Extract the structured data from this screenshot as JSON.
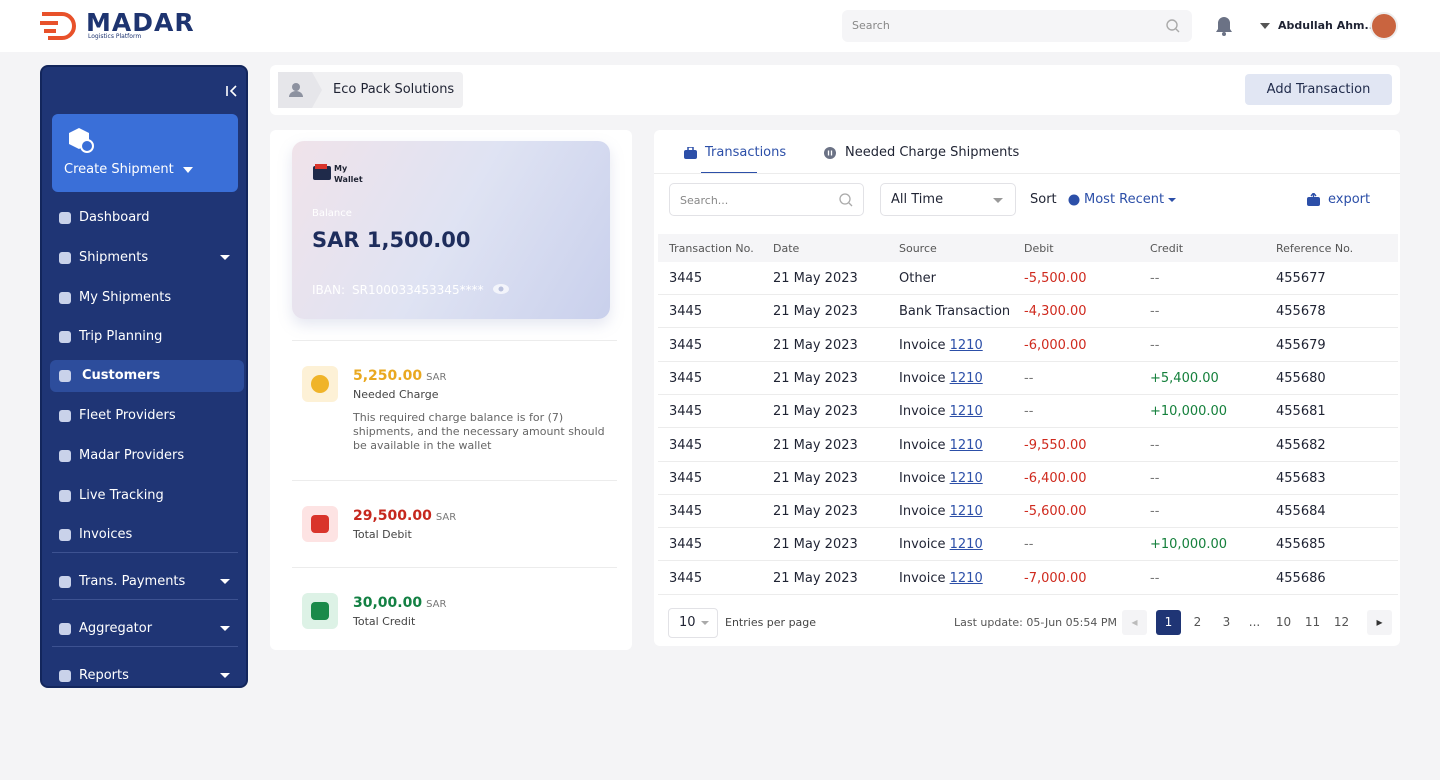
{
  "header": {
    "logo_title": "MADAR",
    "logo_subtitle": "Logistics Platform",
    "search_placeholder": "Search",
    "user_name": "Abdullah Ahm..."
  },
  "sidebar": {
    "create_shipment": "Create Shipment",
    "items": [
      {
        "label": "Dashboard"
      },
      {
        "label": "Shipments",
        "has_submenu": true
      },
      {
        "label": "My Shipments"
      },
      {
        "label": "Trip Planning"
      },
      {
        "label": "Customers",
        "active": true
      },
      {
        "label": "Fleet Providers"
      },
      {
        "label": "Madar Providers"
      },
      {
        "label": "Live Tracking"
      },
      {
        "label": "Invoices"
      },
      {
        "label": "Trans. Payments",
        "has_submenu": true,
        "divider_before": true
      },
      {
        "label": "Aggregator",
        "has_submenu": true,
        "divider_before": true
      },
      {
        "label": "Reports",
        "has_submenu": true,
        "divider_before": true
      }
    ]
  },
  "breadcrumb": "Eco Pack Solutions",
  "add_button": "Add Transaction",
  "wallet": {
    "title": "My Wallet",
    "balance_label": "Balance",
    "balance": "SAR 1,500.00",
    "iban_label": "IBAN:",
    "iban": "SR100033453345****"
  },
  "summary": [
    {
      "amount": "5,250.00",
      "currency": "SAR",
      "label": "Needed Charge",
      "note": "This required charge balance is for (7) shipments, and the necessary amount should be available in the wallet"
    },
    {
      "amount": "29,500.00",
      "currency": "SAR",
      "label": "Total Debit"
    },
    {
      "amount": "30,00.00",
      "currency": "SAR",
      "label": "Total Credit"
    }
  ],
  "tabs": [
    "Transactions",
    "Needed Charge Shipments"
  ],
  "filters": {
    "search_placeholder": "Search...",
    "period": "All Time",
    "sort_label": "Sort",
    "sort_value": "Most Recent",
    "export": "export"
  },
  "table": {
    "columns": [
      "Transaction No.",
      "Date",
      "Source",
      "Debit",
      "Credit",
      "Reference No."
    ],
    "rows": [
      {
        "transaction_no": "3445",
        "date": "21 May 2023",
        "source": "Other",
        "debit": "-5,500.00",
        "credit": "--",
        "reference": "455677"
      },
      {
        "transaction_no": "3445",
        "date": "21 May 2023",
        "source": "Bank Transaction",
        "debit": "-4,300.00",
        "credit": "--",
        "reference": "455678"
      },
      {
        "transaction_no": "3445",
        "date": "21 May 2023",
        "source": "Invoice",
        "source_link": "1210",
        "debit": "-6,000.00",
        "credit": "--",
        "reference": "455679"
      },
      {
        "transaction_no": "3445",
        "date": "21 May 2023",
        "source": "Invoice",
        "source_link": "1210",
        "debit": "--",
        "credit": "+5,400.00",
        "reference": "455680"
      },
      {
        "transaction_no": "3445",
        "date": "21 May 2023",
        "source": "Invoice",
        "source_link": "1210",
        "debit": "--",
        "credit": "+10,000.00",
        "reference": "455681"
      },
      {
        "transaction_no": "3445",
        "date": "21 May 2023",
        "source": "Invoice",
        "source_link": "1210",
        "debit": "-9,550.00",
        "credit": "--",
        "reference": "455682"
      },
      {
        "transaction_no": "3445",
        "date": "21 May 2023",
        "source": "Invoice",
        "source_link": "1210",
        "debit": "-6,400.00",
        "credit": "--",
        "reference": "455683"
      },
      {
        "transaction_no": "3445",
        "date": "21 May 2023",
        "source": "Invoice",
        "source_link": "1210",
        "debit": "-5,600.00",
        "credit": "--",
        "reference": "455684"
      },
      {
        "transaction_no": "3445",
        "date": "21 May 2023",
        "source": "Invoice",
        "source_link": "1210",
        "debit": "--",
        "credit": "+10,000.00",
        "reference": "455685"
      },
      {
        "transaction_no": "3445",
        "date": "21 May 2023",
        "source": "Invoice",
        "source_link": "1210",
        "debit": "-7,000.00",
        "credit": "--",
        "reference": "455686"
      }
    ]
  },
  "pagination": {
    "per_page": "10",
    "per_page_label": "Entries per page",
    "last_update": "Last update: 05-Jun 05:54 PM",
    "pages": [
      "1",
      "2",
      "3",
      "...",
      "10",
      "11",
      "12"
    ],
    "current": 0
  }
}
